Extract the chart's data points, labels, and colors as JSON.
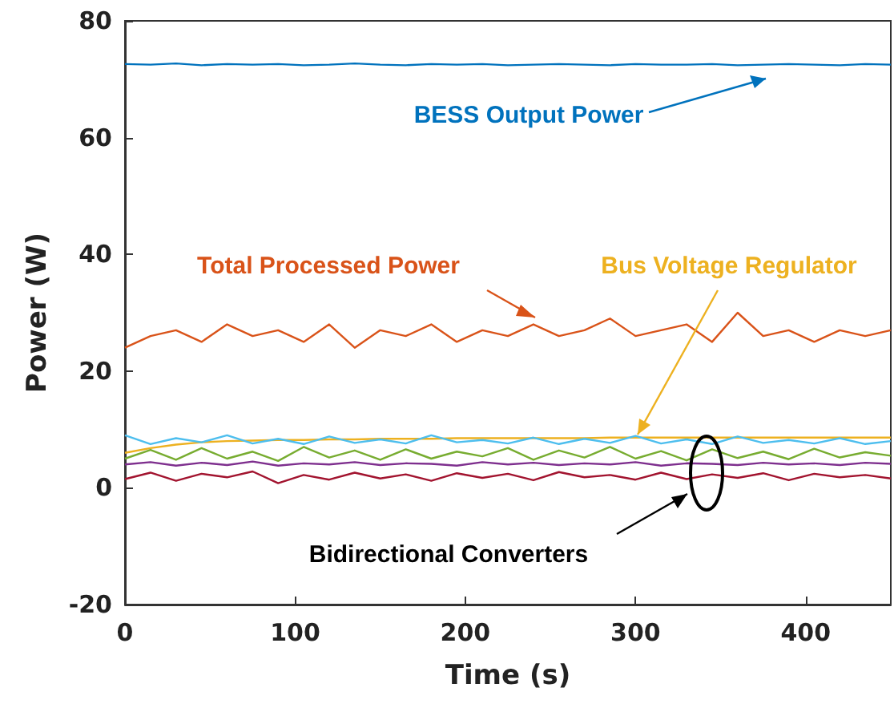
{
  "chart_data": {
    "type": "line",
    "xlabel": "Time (s)",
    "ylabel": "Power (W)",
    "x": [
      0,
      15,
      30,
      45,
      60,
      75,
      90,
      105,
      120,
      135,
      150,
      165,
      180,
      195,
      210,
      225,
      240,
      255,
      270,
      285,
      300,
      315,
      330,
      345,
      360,
      375,
      390,
      405,
      420,
      435,
      450
    ],
    "xlim": [
      0,
      450
    ],
    "xticks": [
      0,
      100,
      200,
      300,
      400
    ],
    "ylim": [
      -20,
      80
    ],
    "yticks": [
      -20,
      0,
      20,
      40,
      60,
      80
    ],
    "series": [
      {
        "name": "BESS Output Power",
        "color": "#0072bd",
        "values": [
          72.6,
          72.5,
          72.7,
          72.4,
          72.6,
          72.5,
          72.6,
          72.4,
          72.5,
          72.7,
          72.5,
          72.4,
          72.6,
          72.5,
          72.6,
          72.4,
          72.5,
          72.6,
          72.5,
          72.4,
          72.6,
          72.5,
          72.5,
          72.6,
          72.4,
          72.5,
          72.6,
          72.5,
          72.4,
          72.6,
          72.5
        ]
      },
      {
        "name": "Total Processed Power",
        "color": "#d95319",
        "values": [
          24,
          26,
          27,
          25,
          28,
          26,
          27,
          25,
          28,
          24,
          27,
          26,
          28,
          25,
          27,
          26,
          28,
          26,
          27,
          29,
          26,
          27,
          28,
          25,
          30,
          26,
          27,
          25,
          27,
          26,
          27
        ]
      },
      {
        "name": "Bus Voltage Regulator",
        "color": "#edb120",
        "values": [
          6,
          6.8,
          7.4,
          7.8,
          8,
          8.1,
          8.2,
          8.2,
          8.3,
          8.3,
          8.4,
          8.4,
          8.4,
          8.5,
          8.5,
          8.5,
          8.5,
          8.5,
          8.5,
          8.6,
          8.6,
          8.6,
          8.6,
          8.6,
          8.6,
          8.6,
          8.6,
          8.6,
          8.6,
          8.6,
          8.6
        ]
      },
      {
        "color": "#4dbeee",
        "values": [
          9,
          7.5,
          8.5,
          7.8,
          9,
          7.6,
          8.4,
          7.5,
          8.8,
          7.7,
          8.3,
          7.6,
          9,
          7.8,
          8.2,
          7.6,
          8.6,
          7.5,
          8.4,
          7.7,
          8.9,
          7.6,
          8.3,
          7.5,
          8.8,
          7.7,
          8.2,
          7.6,
          8.5,
          7.5,
          8
        ]
      },
      {
        "color": "#77ac30",
        "values": [
          5,
          6.5,
          4.8,
          6.8,
          5,
          6.2,
          4.6,
          7,
          5.2,
          6.4,
          4.8,
          6.6,
          5,
          6.2,
          5.4,
          6.8,
          4.8,
          6.4,
          5.2,
          7,
          5,
          6.3,
          4.7,
          6.6,
          5.1,
          6.2,
          4.9,
          6.7,
          5.2,
          6.1,
          5.5
        ]
      },
      {
        "color": "#7e2f8e",
        "values": [
          4,
          4.4,
          3.8,
          4.3,
          3.9,
          4.5,
          3.8,
          4.2,
          4,
          4.4,
          3.9,
          4.2,
          4.1,
          3.8,
          4.4,
          4,
          4.3,
          3.9,
          4.2,
          4,
          4.4,
          3.8,
          4.2,
          4.1,
          3.9,
          4.3,
          4,
          4.2,
          3.9,
          4.3,
          4.1
        ]
      },
      {
        "color": "#a2142f",
        "values": [
          1.5,
          2.6,
          1.2,
          2.4,
          1.8,
          2.8,
          0.8,
          2.2,
          1.4,
          2.6,
          1.6,
          2.3,
          1.2,
          2.5,
          1.7,
          2.4,
          1.3,
          2.7,
          1.8,
          2.2,
          1.4,
          2.6,
          1.5,
          2.3,
          1.7,
          2.5,
          1.3,
          2.4,
          1.8,
          2.2,
          1.6
        ]
      }
    ],
    "annotations": [
      "Bidirectional Converters"
    ],
    "grid": false,
    "legend": false,
    "marker": "none",
    "line_style": "solid"
  }
}
